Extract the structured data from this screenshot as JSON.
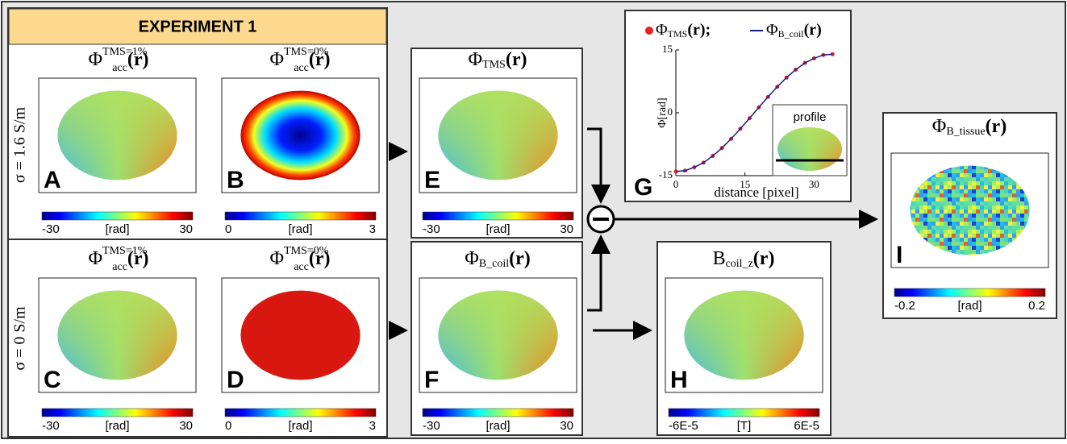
{
  "header": {
    "title": "EXPERIMENT 1"
  },
  "row_labels": [
    "σ = 1.6 S/m",
    "σ = 0 S/m"
  ],
  "panels": [
    {
      "letter": "A",
      "title": {
        "symbol": "Φ",
        "sub": "acc",
        "sup": "TMS=1%",
        "arg": "(r)"
      },
      "colorbar": {
        "min": "-30",
        "unit": "[rad]",
        "max": "30"
      }
    },
    {
      "letter": "B",
      "title": {
        "symbol": "Φ",
        "sub": "acc",
        "sup": "TMS=0%",
        "arg": "(r)"
      },
      "colorbar": {
        "min": "0",
        "unit": "[rad]",
        "max": "3"
      }
    },
    {
      "letter": "C",
      "title": {
        "symbol": "Φ",
        "sub": "acc",
        "sup": "TMS=1%",
        "arg": "(r)"
      },
      "colorbar": {
        "min": "-30",
        "unit": "[rad]",
        "max": "30"
      }
    },
    {
      "letter": "D",
      "title": {
        "symbol": "Φ",
        "sub": "acc",
        "sup": "TMS=0%",
        "arg": "(r)"
      },
      "colorbar": {
        "min": "0",
        "unit": "[rad]",
        "max": "3"
      }
    },
    {
      "letter": "E",
      "title": {
        "symbol": "Φ",
        "sub": "TMS",
        "arg": "(r)"
      },
      "colorbar": {
        "min": "-30",
        "unit": "[rad]",
        "max": "30"
      }
    },
    {
      "letter": "F",
      "title": {
        "symbol": "Φ",
        "sub": "B_coil",
        "arg": "(r)"
      },
      "colorbar": {
        "min": "-30",
        "unit": "[rad]",
        "max": "30"
      }
    },
    {
      "letter": "H",
      "title": {
        "symbol": "B",
        "sub": "coil_z",
        "arg": "(r)"
      },
      "colorbar": {
        "min": "-6E-5",
        "unit": "[T]",
        "max": "6E-5"
      }
    },
    {
      "letter": "I",
      "title": {
        "symbol": "Φ",
        "sub": "B_tissue",
        "arg": "(r)"
      },
      "colorbar": {
        "min": "-0.2",
        "unit": "[rad]",
        "max": "0.2"
      }
    }
  ],
  "plot": {
    "letter": "G",
    "type": "line",
    "x": [
      0,
      2,
      4,
      6,
      8,
      10,
      12,
      14,
      16,
      18,
      20,
      22,
      24,
      26,
      28,
      30,
      32,
      34
    ],
    "series": [
      {
        "name": {
          "symbol": "Φ",
          "sub": "TMS",
          "arg": "(r);"
        },
        "color": "#e8201c",
        "marker": "dot",
        "values": [
          -14,
          -13.8,
          -13,
          -11.9,
          -10.3,
          -8.4,
          -6.2,
          -3.8,
          -1.3,
          1.3,
          3.8,
          6.2,
          8.4,
          10.3,
          11.9,
          13,
          13.8,
          14
        ]
      },
      {
        "name": {
          "symbol": "Φ",
          "sub": "B_coil",
          "arg": "(r)"
        },
        "color": "#1c1c8c",
        "marker": "line",
        "values": [
          -14,
          -13.8,
          -13,
          -11.9,
          -10.3,
          -8.4,
          -6.2,
          -3.8,
          -1.3,
          1.3,
          3.8,
          6.2,
          8.4,
          10.3,
          11.9,
          13,
          13.8,
          14
        ]
      }
    ],
    "xlim": [
      0,
      35
    ],
    "ylim": [
      -15,
      15
    ],
    "xticks": [
      0,
      15,
      30
    ],
    "yticks": [
      15,
      0,
      -15
    ],
    "xlabel": "distance [pixel]",
    "ylabel": "Φ[rad]",
    "inset_label": "profile"
  }
}
